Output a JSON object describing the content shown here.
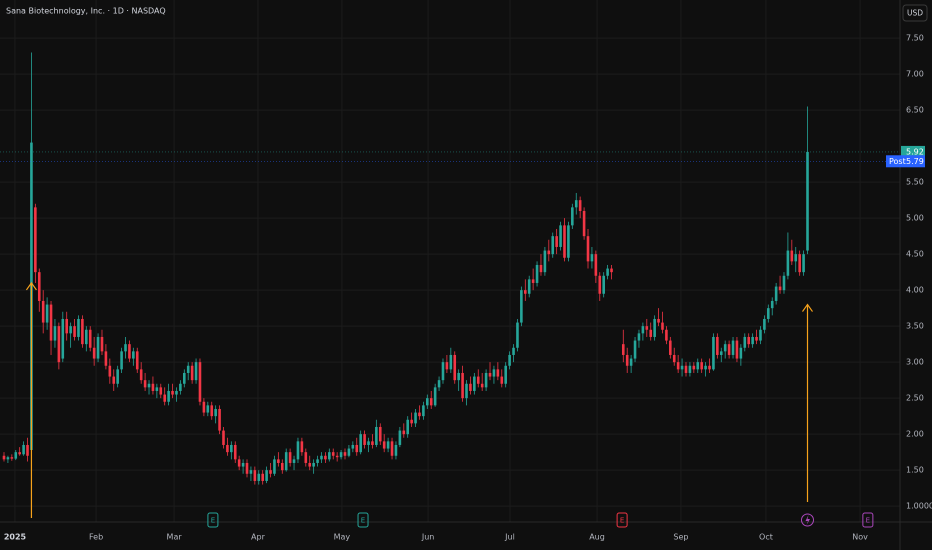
{
  "chart_data": {
    "type": "candlestick",
    "title": "Sana Biotechnology, Inc. · 1D · NASDAQ",
    "currency": "USD",
    "up_color": "#26a69a",
    "down_color": "#f23645",
    "grid": true,
    "xlim": [
      -1.02,
      228.6
    ],
    "ylim": [
      0.78,
      8.03
    ],
    "xticks": [
      {
        "value": 2.8,
        "label": "2025"
      },
      {
        "value": 23.5,
        "label": "Feb"
      },
      {
        "value": 43.4,
        "label": "Mar"
      },
      {
        "value": 64.8,
        "label": "Apr"
      },
      {
        "value": 86.2,
        "label": "May"
      },
      {
        "value": 108.2,
        "label": "Jun"
      },
      {
        "value": 129.1,
        "label": "Jul"
      },
      {
        "value": 151.3,
        "label": "Aug"
      },
      {
        "value": 172.7,
        "label": "Sep"
      },
      {
        "value": 194.4,
        "label": "Oct"
      },
      {
        "value": 218.4,
        "label": "Nov"
      }
    ],
    "yticks": [
      {
        "value": 1.0,
        "label": "1.0000"
      },
      {
        "value": 1.5,
        "label": "1.50"
      },
      {
        "value": 2.0,
        "label": "2.00"
      },
      {
        "value": 2.5,
        "label": "2.50"
      },
      {
        "value": 3.0,
        "label": "3.00"
      },
      {
        "value": 3.5,
        "label": "3.50"
      },
      {
        "value": 4.0,
        "label": "4.00"
      },
      {
        "value": 4.5,
        "label": "4.50"
      },
      {
        "value": 5.0,
        "label": "5.00"
      },
      {
        "value": 5.5,
        "label": "5.50"
      },
      {
        "value": 6.5,
        "label": "6.50"
      },
      {
        "value": 7.0,
        "label": "7.00"
      },
      {
        "value": 7.5,
        "label": "7.50"
      }
    ],
    "last_price": 5.92,
    "last_color": "#26a69a",
    "post_market": {
      "label": "Post",
      "price": 5.79,
      "color": "#2962ff"
    },
    "events": [
      {
        "x": 53.3,
        "label": "E",
        "color": "#26a69a"
      },
      {
        "x": 91.6,
        "label": "E",
        "color": "#26a69a"
      },
      {
        "x": 157.7,
        "label": "E",
        "color": "#f23645"
      },
      {
        "x": 205,
        "color": "#ab47bc"
      },
      {
        "x": 220.4,
        "label": "E",
        "color": "#ab47bc"
      }
    ],
    "arrows": [
      {
        "x": 7,
        "y": 4.1,
        "color": "#f7a21b"
      },
      {
        "x": 205,
        "y": 3.8,
        "color": "#f7a21b"
      }
    ],
    "x": [
      0,
      1,
      2,
      3,
      4,
      5,
      6,
      7,
      8,
      9,
      10,
      11,
      12,
      13,
      14,
      15,
      16,
      17,
      18,
      19,
      20,
      21,
      22,
      23,
      24,
      25,
      26,
      27,
      28,
      29,
      30,
      31,
      32,
      33,
      34,
      35,
      36,
      37,
      38,
      39,
      40,
      41,
      42,
      43,
      44,
      45,
      46,
      47,
      48,
      49,
      50,
      51,
      52,
      53,
      54,
      55,
      56,
      57,
      58,
      59,
      60,
      61,
      62,
      63,
      64,
      65,
      66,
      67,
      68,
      69,
      70,
      71,
      72,
      73,
      74,
      75,
      76,
      77,
      78,
      79,
      80,
      81,
      82,
      83,
      84,
      85,
      86,
      87,
      88,
      89,
      90,
      91,
      92,
      93,
      94,
      95,
      96,
      97,
      98,
      99,
      100,
      101,
      102,
      103,
      104,
      105,
      106,
      107,
      108,
      109,
      110,
      111,
      112,
      113,
      114,
      115,
      116,
      117,
      118,
      119,
      120,
      121,
      122,
      123,
      124,
      125,
      126,
      127,
      128,
      129,
      130,
      131,
      132,
      133,
      134,
      135,
      136,
      137,
      138,
      139,
      140,
      141,
      142,
      143,
      144,
      145,
      146,
      147,
      148,
      149,
      150,
      151,
      152,
      153,
      154,
      155,
      156,
      157,
      158,
      159,
      160,
      161,
      162,
      163,
      164,
      165,
      166,
      167,
      168,
      169,
      170,
      171,
      172,
      173,
      174,
      175,
      176,
      177,
      178,
      179,
      180,
      181,
      182,
      183,
      184,
      185,
      186,
      187,
      188,
      189,
      190,
      191,
      192,
      193,
      194,
      195,
      196,
      197,
      198,
      199,
      200,
      201,
      202,
      203,
      204,
      205
    ],
    "open": [
      1.7,
      1.65,
      1.68,
      1.66,
      1.75,
      1.72,
      1.85,
      1.78,
      5.15,
      4.25,
      3.85,
      3.55,
      3.8,
      3.3,
      3.5,
      3.05,
      3.6,
      3.4,
      3.5,
      3.35,
      3.6,
      3.25,
      3.45,
      3.2,
      3.05,
      3.35,
      3.15,
      2.95,
      2.8,
      2.7,
      2.9,
      3.15,
      3.25,
      3.05,
      3.15,
      2.9,
      2.75,
      2.65,
      2.7,
      2.6,
      2.65,
      2.55,
      2.45,
      2.6,
      2.55,
      2.6,
      2.7,
      2.85,
      2.95,
      2.75,
      3.0,
      2.45,
      2.3,
      2.4,
      2.25,
      2.35,
      2.05,
      1.85,
      1.75,
      1.85,
      1.65,
      1.55,
      1.6,
      1.45,
      1.5,
      1.35,
      1.45,
      1.35,
      1.5,
      1.45,
      1.65,
      1.6,
      1.5,
      1.75,
      1.6,
      1.65,
      1.9,
      1.75,
      1.6,
      1.55,
      1.6,
      1.65,
      1.7,
      1.65,
      1.75,
      1.7,
      1.68,
      1.75,
      1.7,
      1.8,
      1.85,
      1.75,
      2.0,
      1.85,
      1.9,
      1.85,
      2.1,
      1.9,
      1.8,
      1.9,
      1.7,
      1.85,
      2.05,
      2.0,
      2.2,
      2.15,
      2.3,
      2.25,
      2.4,
      2.5,
      2.4,
      2.65,
      2.75,
      3.0,
      2.9,
      3.1,
      2.75,
      2.85,
      2.5,
      2.7,
      2.6,
      2.8,
      2.7,
      2.65,
      2.85,
      2.8,
      2.9,
      2.8,
      2.7,
      2.95,
      3.1,
      3.2,
      3.55,
      4.0,
      3.95,
      4.15,
      4.1,
      4.35,
      4.25,
      4.55,
      4.5,
      4.75,
      4.6,
      4.9,
      4.45,
      4.9,
      5.15,
      5.25,
      5.1,
      4.75,
      4.4,
      4.5,
      4.2,
      3.95,
      4.2,
      4.3,
      null,
      null,
      3.25,
      3.1,
      2.95,
      3.05,
      3.3,
      3.4,
      3.5,
      3.45,
      3.35,
      3.6,
      3.55,
      3.45,
      3.3,
      3.1,
      3.0,
      2.9,
      2.95,
      2.85,
      2.95,
      2.9,
      3.0,
      2.9,
      2.95,
      2.9,
      3.35,
      3.1,
      3.15,
      3.25,
      3.1,
      3.3,
      3.05,
      3.2,
      3.35,
      3.25,
      3.35,
      3.3,
      3.45,
      3.6,
      3.75,
      3.85,
      4.05,
      4.0,
      4.2,
      4.55,
      4.4,
      4.5,
      4.25,
      4.55
    ],
    "high": [
      1.75,
      1.7,
      1.72,
      1.78,
      1.82,
      1.9,
      1.95,
      7.3,
      5.2,
      4.3,
      4.0,
      3.9,
      3.85,
      3.6,
      3.55,
      3.7,
      3.7,
      3.55,
      3.6,
      3.65,
      3.65,
      3.5,
      3.5,
      3.35,
      3.4,
      3.45,
      3.25,
      3.05,
      2.9,
      2.95,
      3.2,
      3.35,
      3.3,
      3.2,
      3.2,
      3.0,
      2.85,
      2.75,
      2.8,
      2.7,
      2.7,
      2.65,
      2.7,
      2.7,
      2.65,
      2.75,
      2.9,
      3.0,
      3.0,
      3.05,
      3.05,
      2.5,
      2.45,
      2.45,
      2.4,
      2.4,
      2.1,
      1.95,
      1.9,
      1.9,
      1.7,
      1.65,
      1.65,
      1.55,
      1.55,
      1.5,
      1.5,
      1.55,
      1.6,
      1.7,
      1.75,
      1.65,
      1.8,
      1.8,
      1.7,
      1.95,
      1.95,
      1.8,
      1.7,
      1.65,
      1.7,
      1.75,
      1.75,
      1.8,
      1.8,
      1.75,
      1.78,
      1.8,
      1.85,
      1.9,
      1.95,
      2.05,
      2.05,
      1.95,
      2.0,
      2.2,
      2.15,
      2.0,
      1.95,
      1.95,
      1.9,
      2.1,
      2.15,
      2.25,
      2.3,
      2.35,
      2.4,
      2.45,
      2.55,
      2.6,
      2.7,
      2.8,
      3.05,
      3.1,
      3.2,
      3.15,
      2.9,
      2.95,
      2.75,
      2.8,
      2.85,
      2.9,
      2.85,
      2.9,
      3.0,
      2.95,
      3.0,
      2.9,
      3.0,
      3.15,
      3.25,
      3.6,
      4.05,
      4.15,
      4.2,
      4.3,
      4.4,
      4.5,
      4.6,
      4.7,
      4.8,
      4.85,
      4.95,
      5.0,
      4.95,
      5.2,
      5.35,
      5.3,
      5.15,
      4.85,
      4.6,
      4.55,
      4.25,
      4.25,
      4.35,
      4.35,
      null,
      null,
      3.45,
      3.2,
      3.1,
      3.35,
      3.45,
      3.55,
      3.6,
      3.55,
      3.65,
      3.75,
      3.7,
      3.5,
      3.35,
      3.2,
      3.1,
      3.05,
      3.0,
      3.0,
      3.0,
      3.05,
      3.05,
      3.0,
      3.05,
      3.4,
      3.4,
      3.2,
      3.3,
      3.3,
      3.35,
      3.35,
      3.25,
      3.4,
      3.4,
      3.4,
      3.45,
      3.5,
      3.65,
      3.8,
      3.9,
      4.1,
      4.2,
      4.25,
      4.8,
      4.7,
      4.6,
      4.55,
      4.55,
      6.55
    ],
    "low": [
      1.62,
      1.6,
      1.63,
      1.64,
      1.7,
      1.7,
      1.62,
      1.75,
      4.1,
      3.7,
      3.4,
      3.45,
      3.1,
      3.2,
      2.9,
      3.0,
      3.3,
      3.2,
      3.3,
      3.3,
      3.2,
      3.15,
      3.15,
      2.95,
      3.0,
      3.1,
      2.9,
      2.7,
      2.6,
      2.65,
      2.85,
      3.05,
      3.0,
      2.95,
      2.85,
      2.7,
      2.6,
      2.55,
      2.55,
      2.5,
      2.5,
      2.4,
      2.4,
      2.5,
      2.45,
      2.55,
      2.65,
      2.75,
      2.7,
      2.7,
      2.4,
      2.25,
      2.25,
      2.2,
      2.15,
      2.0,
      1.8,
      1.7,
      1.65,
      1.6,
      1.5,
      1.45,
      1.4,
      1.35,
      1.3,
      1.3,
      1.3,
      1.32,
      1.4,
      1.42,
      1.55,
      1.45,
      1.48,
      1.55,
      1.5,
      1.6,
      1.7,
      1.55,
      1.5,
      1.45,
      1.55,
      1.6,
      1.6,
      1.62,
      1.65,
      1.62,
      1.65,
      1.65,
      1.68,
      1.75,
      1.7,
      1.72,
      1.8,
      1.75,
      1.8,
      1.82,
      1.85,
      1.75,
      1.75,
      1.65,
      1.65,
      1.82,
      1.95,
      1.95,
      2.1,
      2.1,
      2.2,
      2.2,
      2.35,
      2.35,
      2.38,
      2.6,
      2.7,
      2.85,
      2.85,
      2.7,
      2.6,
      2.45,
      2.4,
      2.55,
      2.55,
      2.65,
      2.6,
      2.6,
      2.75,
      2.7,
      2.75,
      2.65,
      2.65,
      2.9,
      3.0,
      3.15,
      3.5,
      3.85,
      3.9,
      4.0,
      4.05,
      4.2,
      4.2,
      4.4,
      4.45,
      4.5,
      4.55,
      4.4,
      4.4,
      4.85,
      5.05,
      5.0,
      4.7,
      4.3,
      4.3,
      4.1,
      3.85,
      3.9,
      4.15,
      4.15,
      null,
      null,
      3.0,
      2.85,
      2.85,
      3.0,
      3.2,
      3.3,
      3.35,
      3.3,
      3.3,
      3.5,
      3.4,
      3.25,
      3.05,
      2.95,
      2.85,
      2.8,
      2.8,
      2.8,
      2.85,
      2.85,
      2.85,
      2.8,
      2.85,
      2.88,
      3.05,
      3.0,
      3.05,
      3.05,
      3.05,
      3.0,
      2.95,
      3.15,
      3.2,
      3.2,
      3.25,
      3.25,
      3.4,
      3.55,
      3.65,
      3.8,
      3.95,
      3.95,
      4.15,
      4.35,
      4.25,
      4.2,
      4.2,
      4.5
    ],
    "close": [
      1.65,
      1.68,
      1.66,
      1.75,
      1.72,
      1.85,
      1.7,
      6.05,
      4.25,
      3.85,
      3.55,
      3.8,
      3.3,
      3.5,
      3.0,
      3.6,
      3.4,
      3.5,
      3.35,
      3.6,
      3.25,
      3.45,
      3.2,
      3.05,
      3.35,
      3.15,
      2.95,
      2.8,
      2.7,
      2.9,
      3.15,
      3.25,
      3.05,
      3.15,
      2.9,
      2.75,
      2.65,
      2.7,
      2.6,
      2.65,
      2.55,
      2.45,
      2.6,
      2.55,
      2.6,
      2.7,
      2.85,
      2.95,
      2.75,
      3.0,
      2.45,
      2.3,
      2.4,
      2.25,
      2.35,
      2.05,
      1.85,
      1.75,
      1.85,
      1.65,
      1.55,
      1.6,
      1.45,
      1.5,
      1.35,
      1.45,
      1.35,
      1.5,
      1.45,
      1.65,
      1.6,
      1.5,
      1.75,
      1.6,
      1.65,
      1.9,
      1.75,
      1.6,
      1.55,
      1.6,
      1.65,
      1.7,
      1.65,
      1.75,
      1.7,
      1.68,
      1.75,
      1.7,
      1.8,
      1.85,
      1.75,
      2.0,
      1.85,
      1.9,
      1.85,
      2.1,
      1.9,
      1.8,
      1.9,
      1.7,
      1.85,
      2.05,
      2.0,
      2.2,
      2.15,
      2.3,
      2.25,
      2.4,
      2.5,
      2.4,
      2.65,
      2.75,
      3.0,
      2.9,
      3.1,
      2.75,
      2.85,
      2.5,
      2.7,
      2.6,
      2.8,
      2.7,
      2.65,
      2.85,
      2.8,
      2.9,
      2.8,
      2.7,
      2.95,
      3.1,
      3.2,
      3.55,
      4.0,
      3.95,
      4.15,
      4.1,
      4.35,
      4.25,
      4.55,
      4.5,
      4.75,
      4.6,
      4.9,
      4.45,
      4.9,
      5.15,
      5.25,
      5.1,
      4.75,
      4.4,
      4.5,
      4.2,
      3.95,
      4.2,
      4.3,
      4.25,
      null,
      null,
      3.1,
      2.95,
      3.05,
      3.3,
      3.4,
      3.5,
      3.45,
      3.35,
      3.6,
      3.55,
      3.45,
      3.3,
      3.1,
      3.0,
      2.9,
      2.95,
      2.85,
      2.95,
      2.9,
      3.0,
      2.9,
      2.95,
      2.9,
      3.35,
      3.1,
      3.15,
      3.25,
      3.1,
      3.3,
      3.05,
      3.2,
      3.35,
      3.25,
      3.35,
      3.3,
      3.45,
      3.6,
      3.75,
      3.85,
      4.05,
      4.0,
      4.2,
      4.55,
      4.4,
      4.5,
      4.25,
      4.5,
      5.92
    ]
  }
}
